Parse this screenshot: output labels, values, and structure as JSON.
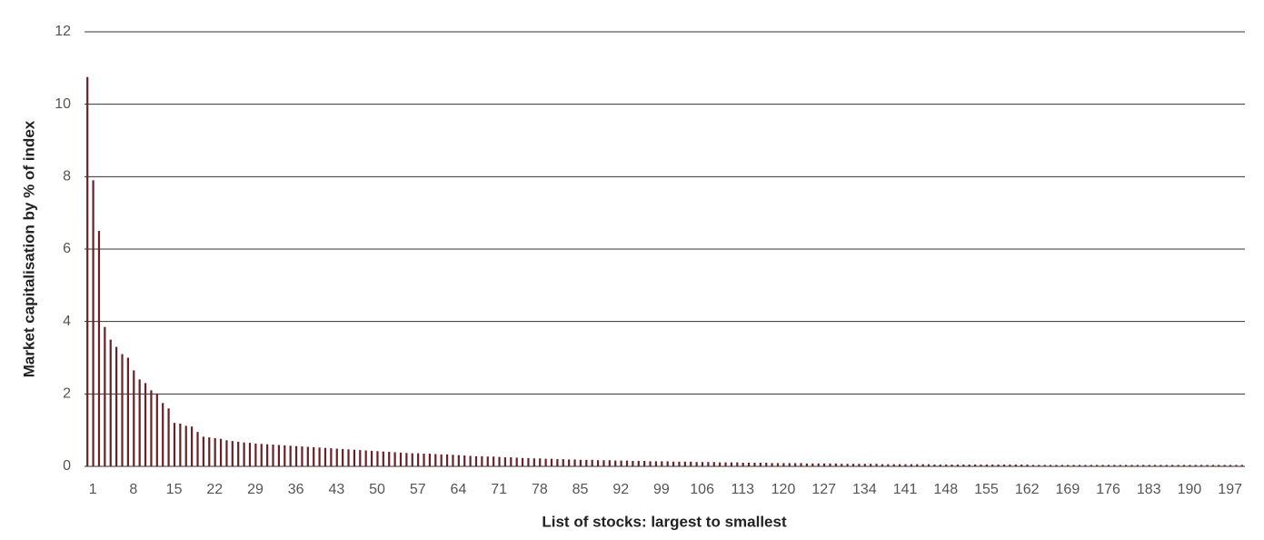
{
  "chart_data": {
    "type": "bar",
    "xlabel": "List of stocks: largest to smallest",
    "ylabel": "Market capitalisation by % of index",
    "color": "#6b1f26",
    "ylim": [
      0,
      12
    ],
    "yticks": [
      0,
      2,
      4,
      6,
      8,
      10,
      12
    ],
    "grid": true,
    "categories": [
      "1",
      null,
      null,
      null,
      null,
      null,
      null,
      "8",
      null,
      null,
      null,
      null,
      null,
      null,
      "15",
      null,
      null,
      null,
      null,
      null,
      null,
      "22",
      null,
      null,
      null,
      null,
      null,
      null,
      "29",
      null,
      null,
      null,
      null,
      null,
      null,
      "36",
      null,
      null,
      null,
      null,
      null,
      null,
      "43",
      null,
      null,
      null,
      null,
      null,
      null,
      "50",
      null,
      null,
      null,
      null,
      null,
      null,
      "57",
      null,
      null,
      null,
      null,
      null,
      null,
      "64",
      null,
      null,
      null,
      null,
      null,
      null,
      "71",
      null,
      null,
      null,
      null,
      null,
      null,
      "78",
      null,
      null,
      null,
      null,
      null,
      null,
      "85",
      null,
      null,
      null,
      null,
      null,
      null,
      "92",
      null,
      null,
      null,
      null,
      null,
      null,
      "99",
      null,
      null,
      null,
      null,
      null,
      null,
      "106",
      null,
      null,
      null,
      null,
      null,
      null,
      "113",
      null,
      null,
      null,
      null,
      null,
      null,
      "120",
      null,
      null,
      null,
      null,
      null,
      null,
      "127",
      null,
      null,
      null,
      null,
      null,
      null,
      "134",
      null,
      null,
      null,
      null,
      null,
      null,
      "141",
      null,
      null,
      null,
      null,
      null,
      null,
      "148",
      null,
      null,
      null,
      null,
      null,
      null,
      "155",
      null,
      null,
      null,
      null,
      null,
      null,
      "162",
      null,
      null,
      null,
      null,
      null,
      null,
      "169",
      null,
      null,
      null,
      null,
      null,
      null,
      "176",
      null,
      null,
      null,
      null,
      null,
      null,
      "183",
      null,
      null,
      null,
      null,
      null,
      null,
      "190",
      null,
      null,
      null,
      null,
      null,
      null,
      "197",
      null,
      null,
      null
    ],
    "values": [
      10.75,
      7.9,
      6.5,
      3.85,
      3.5,
      3.3,
      3.1,
      3.0,
      2.65,
      2.4,
      2.3,
      2.1,
      2.0,
      1.75,
      1.6,
      1.2,
      1.18,
      1.12,
      1.1,
      0.95,
      0.82,
      0.8,
      0.78,
      0.76,
      0.72,
      0.7,
      0.68,
      0.66,
      0.65,
      0.63,
      0.62,
      0.61,
      0.6,
      0.59,
      0.58,
      0.57,
      0.56,
      0.55,
      0.54,
      0.53,
      0.52,
      0.51,
      0.5,
      0.49,
      0.48,
      0.47,
      0.46,
      0.45,
      0.44,
      0.43,
      0.42,
      0.41,
      0.4,
      0.39,
      0.38,
      0.37,
      0.36,
      0.36,
      0.35,
      0.35,
      0.34,
      0.33,
      0.33,
      0.32,
      0.31,
      0.3,
      0.29,
      0.28,
      0.28,
      0.27,
      0.27,
      0.26,
      0.25,
      0.25,
      0.24,
      0.23,
      0.23,
      0.22,
      0.22,
      0.21,
      0.21,
      0.2,
      0.2,
      0.19,
      0.19,
      0.18,
      0.18,
      0.18,
      0.17,
      0.17,
      0.17,
      0.16,
      0.16,
      0.16,
      0.15,
      0.15,
      0.15,
      0.14,
      0.14,
      0.14,
      0.14,
      0.13,
      0.13,
      0.13,
      0.13,
      0.12,
      0.12,
      0.12,
      0.12,
      0.11,
      0.11,
      0.11,
      0.11,
      0.1,
      0.1,
      0.1,
      0.1,
      0.1,
      0.09,
      0.09,
      0.09,
      0.09,
      0.09,
      0.09,
      0.08,
      0.08,
      0.08,
      0.08,
      0.08,
      0.08,
      0.07,
      0.07,
      0.07,
      0.07,
      0.07,
      0.07,
      0.07,
      0.06,
      0.06,
      0.06,
      0.06,
      0.06,
      0.06,
      0.06,
      0.06,
      0.06,
      0.05,
      0.05,
      0.05,
      0.05,
      0.05,
      0.05,
      0.05,
      0.05,
      0.05,
      0.05,
      0.05,
      0.05,
      0.05,
      0.05,
      0.05,
      0.05,
      0.05,
      0.04,
      0.04,
      0.04,
      0.04,
      0.04,
      0.04,
      0.04,
      0.04,
      0.04,
      0.04,
      0.04,
      0.04,
      0.04,
      0.04,
      0.04,
      0.04,
      0.04,
      0.04,
      0.04,
      0.04,
      0.04,
      0.04,
      0.04,
      0.04,
      0.04,
      0.04,
      0.04,
      0.04,
      0.04,
      0.04,
      0.04,
      0.04,
      0.04,
      0.04,
      0.04,
      0.04,
      0.04
    ]
  }
}
